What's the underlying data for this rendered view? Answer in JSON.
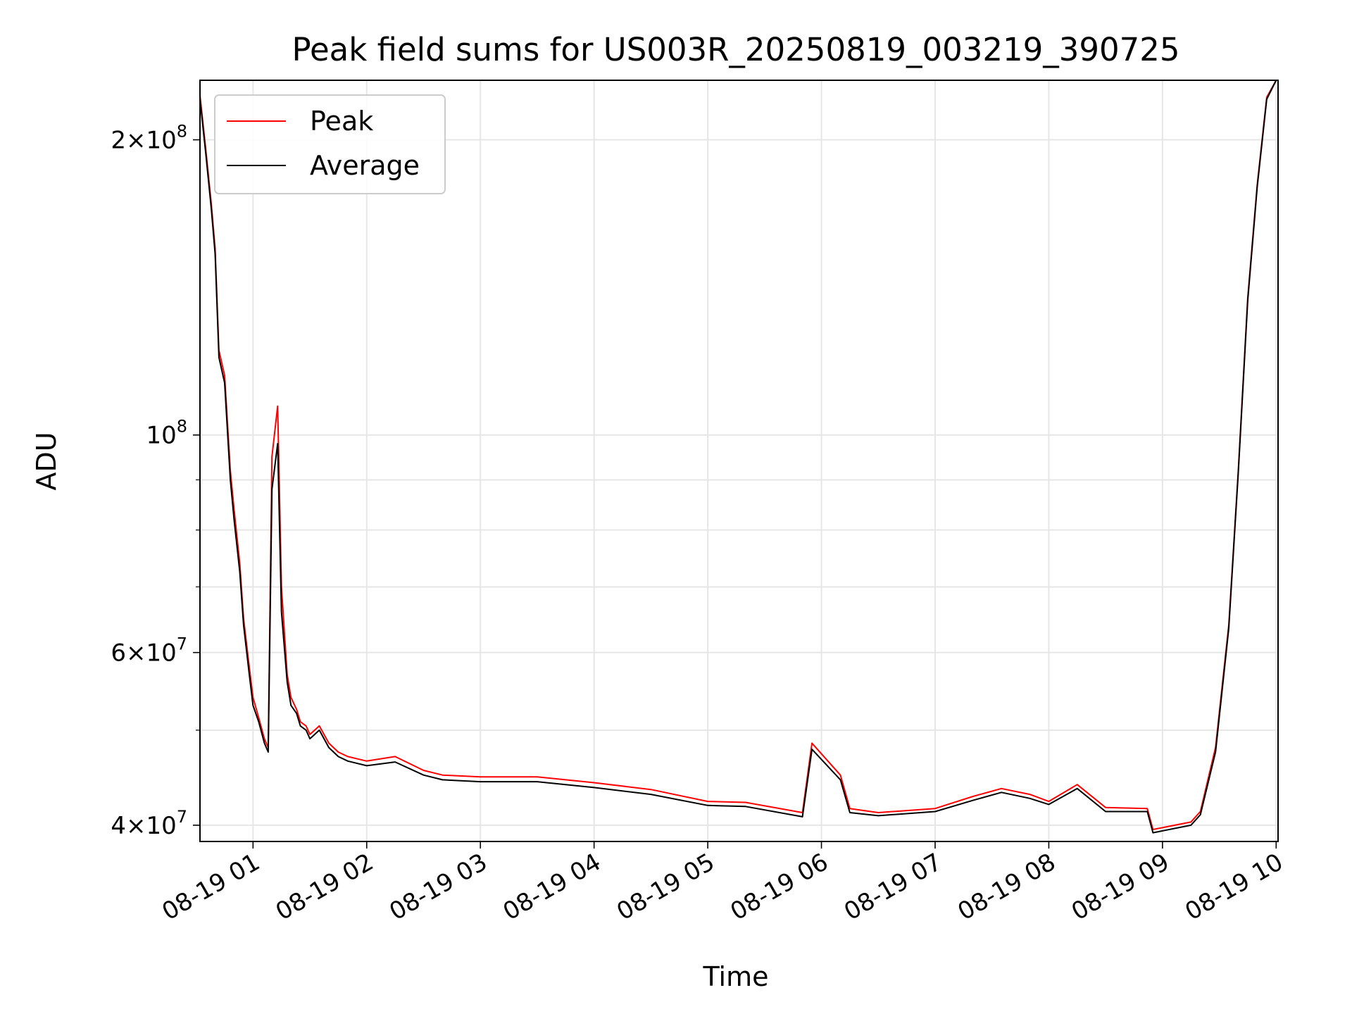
{
  "chart_data": {
    "type": "line",
    "title": "Peak field sums for US003R_20250819_003219_390725",
    "xlabel": "Time",
    "ylabel": "ADU",
    "y_scale": "log",
    "ylim": [
      38500000,
      230000000
    ],
    "xlim": [
      "08-19 00:32",
      "08-19 10:01"
    ],
    "grid": true,
    "legend": {
      "placement": "upper-left",
      "entries": [
        "Peak",
        "Average"
      ]
    },
    "x_ticks": [
      "08-19 01",
      "08-19 02",
      "08-19 03",
      "08-19 04",
      "08-19 05",
      "08-19 06",
      "08-19 07",
      "08-19 08",
      "08-19 09",
      "08-19 10"
    ],
    "y_ticks": [
      {
        "value": 40000000,
        "mantissa": "4",
        "exponent": "7"
      },
      {
        "value": 60000000,
        "mantissa": "6",
        "exponent": "7"
      },
      {
        "value": 100000000,
        "mantissa": "",
        "exponent": "8"
      },
      {
        "value": 200000000,
        "mantissa": "2",
        "exponent": "8"
      }
    ],
    "y_minor_ticks": [
      50000000,
      70000000,
      80000000,
      90000000
    ],
    "series": [
      {
        "name": "Peak",
        "color": "#ff0000",
        "x": [
          "08-19 00:32",
          "08-19 00:35",
          "08-19 00:38",
          "08-19 00:40",
          "08-19 00:42",
          "08-19 00:45",
          "08-19 00:48",
          "08-19 00:50",
          "08-19 00:53",
          "08-19 00:55",
          "08-19 00:58",
          "08-19 01:00",
          "08-19 01:03",
          "08-19 01:06",
          "08-19 01:08",
          "08-19 01:10",
          "08-19 01:13",
          "08-19 01:15",
          "08-19 01:18",
          "08-19 01:20",
          "08-19 01:23",
          "08-19 01:25",
          "08-19 01:28",
          "08-19 01:30",
          "08-19 01:35",
          "08-19 01:40",
          "08-19 01:45",
          "08-19 01:50",
          "08-19 02:00",
          "08-19 02:15",
          "08-19 02:30",
          "08-19 02:40",
          "08-19 03:00",
          "08-19 03:30",
          "08-19 04:00",
          "08-19 04:30",
          "08-19 05:00",
          "08-19 05:20",
          "08-19 05:50",
          "08-19 05:55",
          "08-19 06:10",
          "08-19 06:15",
          "08-19 06:30",
          "08-19 07:00",
          "08-19 07:20",
          "08-19 07:35",
          "08-19 07:50",
          "08-19 08:00",
          "08-19 08:15",
          "08-19 08:30",
          "08-19 08:52",
          "08-19 08:55",
          "08-19 09:15",
          "08-19 09:20",
          "08-19 09:28",
          "08-19 09:35",
          "08-19 09:40",
          "08-19 09:45",
          "08-19 09:50",
          "08-19 09:55",
          "08-19 10:00"
        ],
        "y": [
          222000000,
          196000000,
          172000000,
          155000000,
          122000000,
          115000000,
          92000000,
          84000000,
          74000000,
          65000000,
          58000000,
          54000000,
          51500000,
          49000000,
          48000000,
          95000000,
          107000000,
          70000000,
          57000000,
          54000000,
          52500000,
          51000000,
          50500000,
          49500000,
          50500000,
          48500000,
          47500000,
          47000000,
          46500000,
          47000000,
          45500000,
          45000000,
          44800000,
          44800000,
          44200000,
          43500000,
          42300000,
          42200000,
          41200000,
          48500000,
          45000000,
          41600000,
          41200000,
          41600000,
          42800000,
          43600000,
          43000000,
          42300000,
          44000000,
          41700000,
          41600000,
          39600000,
          40300000,
          41300000,
          48000000,
          64000000,
          92000000,
          138000000,
          180000000,
          221000000,
          230000000
        ]
      },
      {
        "name": "Average",
        "color": "#000000",
        "x": [
          "08-19 00:32",
          "08-19 00:35",
          "08-19 00:38",
          "08-19 00:40",
          "08-19 00:42",
          "08-19 00:45",
          "08-19 00:48",
          "08-19 00:50",
          "08-19 00:53",
          "08-19 00:55",
          "08-19 00:58",
          "08-19 01:00",
          "08-19 01:03",
          "08-19 01:06",
          "08-19 01:08",
          "08-19 01:10",
          "08-19 01:13",
          "08-19 01:15",
          "08-19 01:18",
          "08-19 01:20",
          "08-19 01:23",
          "08-19 01:25",
          "08-19 01:28",
          "08-19 01:30",
          "08-19 01:35",
          "08-19 01:40",
          "08-19 01:45",
          "08-19 01:50",
          "08-19 02:00",
          "08-19 02:15",
          "08-19 02:30",
          "08-19 02:40",
          "08-19 03:00",
          "08-19 03:30",
          "08-19 04:00",
          "08-19 04:30",
          "08-19 05:00",
          "08-19 05:20",
          "08-19 05:50",
          "08-19 05:55",
          "08-19 06:10",
          "08-19 06:15",
          "08-19 06:30",
          "08-19 07:00",
          "08-19 07:20",
          "08-19 07:35",
          "08-19 07:50",
          "08-19 08:00",
          "08-19 08:15",
          "08-19 08:30",
          "08-19 08:52",
          "08-19 08:55",
          "08-19 09:15",
          "08-19 09:20",
          "08-19 09:28",
          "08-19 09:35",
          "08-19 09:40",
          "08-19 09:45",
          "08-19 09:50",
          "08-19 09:55",
          "08-19 10:00"
        ],
        "y": [
          220000000,
          194000000,
          170000000,
          153000000,
          120000000,
          113000000,
          90000000,
          82000000,
          72500000,
          64000000,
          57000000,
          53000000,
          51000000,
          48500000,
          47500000,
          88000000,
          98000000,
          66000000,
          56000000,
          53000000,
          52000000,
          50500000,
          50000000,
          49000000,
          50000000,
          48000000,
          47000000,
          46500000,
          46000000,
          46400000,
          45000000,
          44500000,
          44300000,
          44300000,
          43700000,
          43000000,
          41900000,
          41800000,
          40800000,
          47800000,
          44500000,
          41200000,
          40900000,
          41300000,
          42400000,
          43200000,
          42600000,
          42000000,
          43600000,
          41300000,
          41300000,
          39300000,
          40000000,
          41000000,
          47500000,
          63500000,
          91500000,
          137000000,
          179000000,
          220000000,
          230000000
        ]
      }
    ]
  }
}
